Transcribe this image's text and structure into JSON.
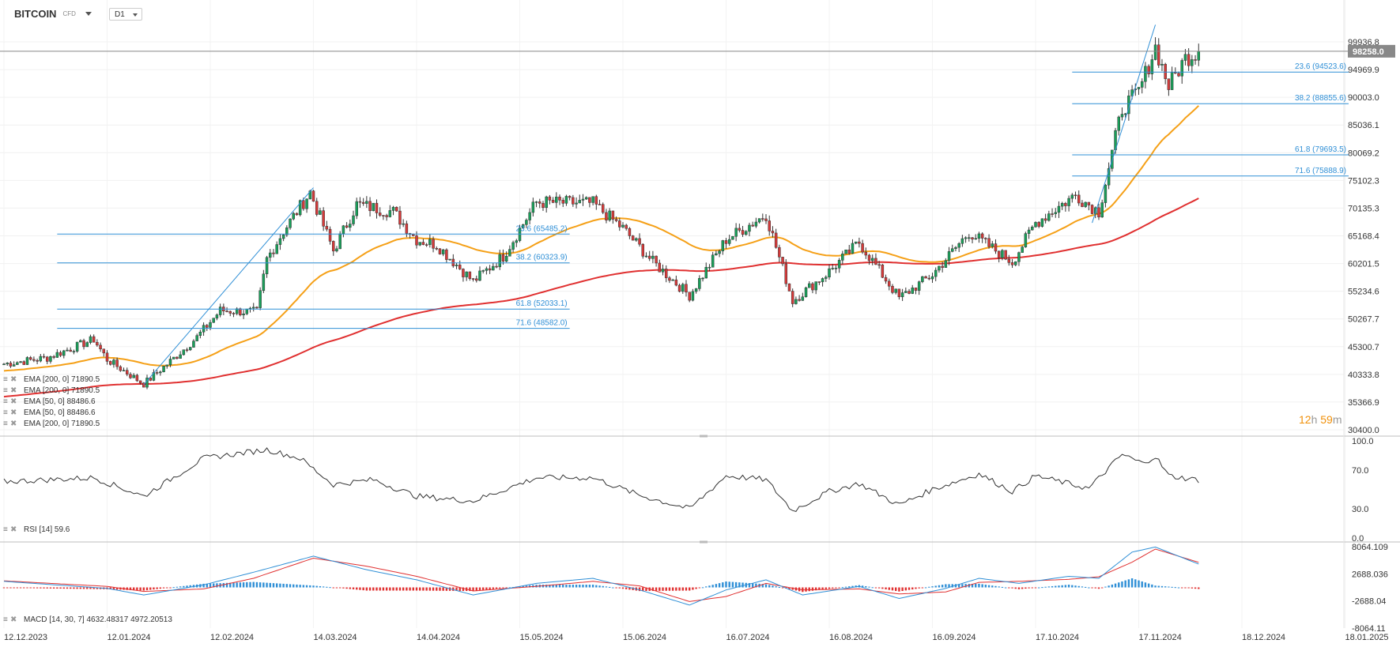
{
  "header": {
    "symbol": "BITCOIN",
    "symbol_type": "CFD",
    "timeframe": "D1"
  },
  "countdown": {
    "hours": "12",
    "hours_unit": "h",
    "minutes": "59",
    "minutes_unit": "m"
  },
  "colors": {
    "up": "#19a05a",
    "down": "#d63a3a",
    "ema50": "#f5a017",
    "ema200": "#e03030",
    "fib": "#2f8fd6",
    "price_tag": "#888888",
    "rsi": "#333333",
    "macd": "#2f8fd6",
    "signal": "#e03030"
  },
  "chart_data": [
    {
      "type": "candlestick",
      "title": "BITCOIN CFD D1",
      "x_ticks": [
        "12.12.2023",
        "12.01.2024",
        "12.02.2024",
        "14.03.2024",
        "14.04.2024",
        "15.05.2024",
        "15.06.2024",
        "16.07.2024",
        "16.08.2024",
        "16.09.2024",
        "17.10.2024",
        "17.11.2024",
        "18.12.2024",
        "18.01.2025"
      ],
      "y_ticks": [
        "99936.8",
        "94969.9",
        "90003.0",
        "85036.1",
        "80069.2",
        "75102.3",
        "70135.3",
        "65168.4",
        "60201.5",
        "55234.6",
        "50267.7",
        "45300.7",
        "40333.8",
        "35366.9",
        "30400.0"
      ],
      "ylim": [
        30400.0,
        99936.8
      ],
      "last_price": "98258.0",
      "anchors": [
        {
          "date": "12.12.2023",
          "close": 42200
        },
        {
          "date": "25.12.2023",
          "close": 43300
        },
        {
          "date": "08.01.2024",
          "close": 46600
        },
        {
          "date": "12.01.2024",
          "close": 43000
        },
        {
          "date": "23.01.2024",
          "close": 38600
        },
        {
          "date": "01.02.2024",
          "close": 43200
        },
        {
          "date": "08.02.2024",
          "close": 47000
        },
        {
          "date": "15.02.2024",
          "close": 51800
        },
        {
          "date": "26.02.2024",
          "close": 51500
        },
        {
          "date": "29.02.2024",
          "close": 61000
        },
        {
          "date": "05.03.2024",
          "close": 66000
        },
        {
          "date": "13.03.2024",
          "close": 73000
        },
        {
          "date": "20.03.2024",
          "close": 62500
        },
        {
          "date": "27.03.2024",
          "close": 70800
        },
        {
          "date": "07.04.2024",
          "close": 69500
        },
        {
          "date": "14.04.2024",
          "close": 64500
        },
        {
          "date": "20.04.2024",
          "close": 63600
        },
        {
          "date": "01.05.2024",
          "close": 57000
        },
        {
          "date": "10.05.2024",
          "close": 61500
        },
        {
          "date": "20.05.2024",
          "close": 71200
        },
        {
          "date": "06.06.2024",
          "close": 71000
        },
        {
          "date": "15.06.2024",
          "close": 66500
        },
        {
          "date": "24.06.2024",
          "close": 60500
        },
        {
          "date": "05.07.2024",
          "close": 54500
        },
        {
          "date": "16.07.2024",
          "close": 64500
        },
        {
          "date": "28.07.2024",
          "close": 69000
        },
        {
          "date": "05.08.2024",
          "close": 53500
        },
        {
          "date": "16.08.2024",
          "close": 58800
        },
        {
          "date": "25.08.2024",
          "close": 64000
        },
        {
          "date": "06.09.2024",
          "close": 54000
        },
        {
          "date": "16.09.2024",
          "close": 58200
        },
        {
          "date": "27.09.2024",
          "close": 65800
        },
        {
          "date": "10.10.2024",
          "close": 60500
        },
        {
          "date": "17.10.2024",
          "close": 67500
        },
        {
          "date": "29.10.2024",
          "close": 72500
        },
        {
          "date": "05.11.2024",
          "close": 69500
        },
        {
          "date": "12.11.2024",
          "close": 88000
        },
        {
          "date": "17.11.2024",
          "close": 91000
        },
        {
          "date": "22.11.2024",
          "close": 99000
        },
        {
          "date": "26.11.2024",
          "close": 92000
        },
        {
          "date": "01.12.2024",
          "close": 97000
        },
        {
          "date": "05.12.2024",
          "close": 98258
        }
      ],
      "ema_labels": [
        {
          "name": "EMA",
          "params": "[200,  0]",
          "value": "71890.5"
        },
        {
          "name": "EMA",
          "params": "[200,  0]",
          "value": "71890.5"
        },
        {
          "name": "EMA",
          "params": "[50,  0]",
          "value": "88486.6"
        },
        {
          "name": "EMA",
          "params": "[50,  0]",
          "value": "88486.6"
        },
        {
          "name": "EMA",
          "params": "[200,  0]",
          "value": "71890.5"
        }
      ],
      "ema50_last": 88486.6,
      "ema200_last": 71890.5,
      "fib_sets": [
        {
          "from": {
            "date": "23.01.2024",
            "price": 38500
          },
          "to": {
            "date": "14.03.2024",
            "price": 73800
          },
          "start_date": "28.12.2023",
          "end_date": "30.05.2024",
          "levels": [
            {
              "label": "23.6 (65485.2)",
              "price": 65485.2
            },
            {
              "label": "38.2 (60323.9)",
              "price": 60323.9
            },
            {
              "label": "61.8 (52033.1)",
              "price": 52033.1
            },
            {
              "label": "71.6 (48582.0)",
              "price": 48582.0
            }
          ]
        },
        {
          "from": {
            "date": "03.11.2024",
            "price": 67500
          },
          "to": {
            "date": "22.11.2024",
            "price": 103000
          },
          "start_date": "28.10.2024",
          "end_date": "10.01.2025",
          "levels": [
            {
              "label": "23.6 (94523.6)",
              "price": 94523.6
            },
            {
              "label": "38.2 (88855.6)",
              "price": 88855.6
            },
            {
              "label": "61.8 (79693.5)",
              "price": 79693.5
            },
            {
              "label": "71.6 (75888.9)",
              "price": 75888.9
            }
          ]
        }
      ]
    },
    {
      "type": "line",
      "name": "RSI [14]",
      "value": "59.6",
      "y_ticks": [
        "100.0",
        "70.0",
        "30.0",
        "0.0"
      ],
      "ylim": [
        0,
        100
      ],
      "anchors": [
        {
          "date": "12.12.2023",
          "value": 58
        },
        {
          "date": "08.01.2024",
          "value": 62
        },
        {
          "date": "23.01.2024",
          "value": 43
        },
        {
          "date": "10.02.2024",
          "value": 82
        },
        {
          "date": "29.02.2024",
          "value": 91
        },
        {
          "date": "10.03.2024",
          "value": 82
        },
        {
          "date": "20.03.2024",
          "value": 55
        },
        {
          "date": "01.04.2024",
          "value": 60
        },
        {
          "date": "14.04.2024",
          "value": 43
        },
        {
          "date": "01.05.2024",
          "value": 38
        },
        {
          "date": "20.05.2024",
          "value": 62
        },
        {
          "date": "06.06.2024",
          "value": 62
        },
        {
          "date": "20.06.2024",
          "value": 44
        },
        {
          "date": "05.07.2024",
          "value": 30
        },
        {
          "date": "16.07.2024",
          "value": 64
        },
        {
          "date": "28.07.2024",
          "value": 60
        },
        {
          "date": "05.08.2024",
          "value": 28
        },
        {
          "date": "16.08.2024",
          "value": 48
        },
        {
          "date": "25.08.2024",
          "value": 56
        },
        {
          "date": "06.09.2024",
          "value": 34
        },
        {
          "date": "16.09.2024",
          "value": 50
        },
        {
          "date": "30.09.2024",
          "value": 66
        },
        {
          "date": "10.10.2024",
          "value": 48
        },
        {
          "date": "17.10.2024",
          "value": 64
        },
        {
          "date": "02.11.2024",
          "value": 51
        },
        {
          "date": "12.11.2024",
          "value": 86
        },
        {
          "date": "18.11.2024",
          "value": 77
        },
        {
          "date": "22.11.2024",
          "value": 84
        },
        {
          "date": "26.11.2024",
          "value": 64
        },
        {
          "date": "05.12.2024",
          "value": 59.6
        }
      ]
    },
    {
      "type": "line",
      "name": "MACD [14, 30, 7]",
      "macd_value": "4632.48317",
      "signal_value": "4972.20513",
      "y_ticks": [
        "8064.109",
        "2688.036",
        "-2688.04",
        "-8064.11"
      ],
      "ylim": [
        -8064.11,
        8064.109
      ],
      "anchors": [
        {
          "date": "12.12.2023",
          "macd": 1200,
          "signal": 1300
        },
        {
          "date": "12.01.2024",
          "macd": -200,
          "signal": 200
        },
        {
          "date": "23.01.2024",
          "macd": -1500,
          "signal": -800
        },
        {
          "date": "10.02.2024",
          "macd": 500,
          "signal": -300
        },
        {
          "date": "25.02.2024",
          "macd": 3000,
          "signal": 1800
        },
        {
          "date": "14.03.2024",
          "macd": 6200,
          "signal": 5800
        },
        {
          "date": "30.03.2024",
          "macd": 3500,
          "signal": 4200
        },
        {
          "date": "14.04.2024",
          "macd": 1500,
          "signal": 2200
        },
        {
          "date": "01.05.2024",
          "macd": -1500,
          "signal": -700
        },
        {
          "date": "20.05.2024",
          "macd": 800,
          "signal": 200
        },
        {
          "date": "06.06.2024",
          "macd": 1800,
          "signal": 1200
        },
        {
          "date": "20.06.2024",
          "macd": -500,
          "signal": 300
        },
        {
          "date": "05.07.2024",
          "macd": -3500,
          "signal": -2800
        },
        {
          "date": "16.07.2024",
          "macd": -500,
          "signal": -1800
        },
        {
          "date": "28.07.2024",
          "macd": 1500,
          "signal": 800
        },
        {
          "date": "08.08.2024",
          "macd": -1500,
          "signal": -500
        },
        {
          "date": "25.08.2024",
          "macd": 200,
          "signal": -300
        },
        {
          "date": "06.09.2024",
          "macd": -2200,
          "signal": -1300
        },
        {
          "date": "20.09.2024",
          "macd": -200,
          "signal": -900
        },
        {
          "date": "30.09.2024",
          "macd": 1800,
          "signal": 1000
        },
        {
          "date": "12.10.2024",
          "macd": 800,
          "signal": 1200
        },
        {
          "date": "27.10.2024",
          "macd": 2200,
          "signal": 1600
        },
        {
          "date": "05.11.2024",
          "macd": 1800,
          "signal": 2100
        },
        {
          "date": "15.11.2024",
          "macd": 7000,
          "signal": 5000
        },
        {
          "date": "22.11.2024",
          "macd": 8000,
          "signal": 7600
        },
        {
          "date": "05.12.2024",
          "macd": 4632,
          "signal": 4972
        }
      ]
    }
  ]
}
